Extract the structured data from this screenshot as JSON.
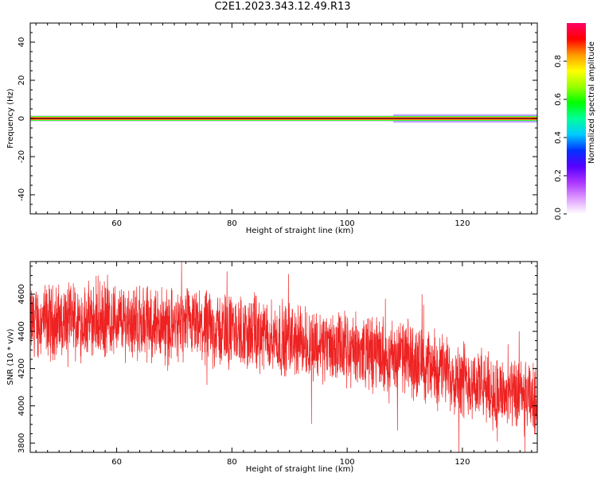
{
  "title": "C2E1.2023.343.12.49.R13",
  "chart_data": [
    {
      "type": "heatmap",
      "xlabel": "Height of straight line (km)",
      "ylabel": "Frequency (Hz)",
      "xlim": [
        45,
        133
      ],
      "ylim": [
        -50,
        50
      ],
      "xticks": [
        60,
        80,
        100,
        120
      ],
      "yticks": [
        -40,
        -20,
        0,
        20,
        40
      ],
      "band": {
        "center": 0,
        "colors": [
          "#cc66ff",
          "#6a5cff",
          "#33ff33",
          "#ffd11a",
          "#ff1a1a",
          "#1a1a1a"
        ]
      },
      "colorbar": {
        "label": "Normalized spectral amplitude",
        "range": [
          0,
          1
        ],
        "ticks": [
          "0.0",
          "0.2",
          "0.4",
          "0.6",
          "0.8"
        ],
        "tick_values": [
          0,
          0.2,
          0.4,
          0.6,
          0.8
        ],
        "colormap": [
          "#ffffff",
          "#dd99ff",
          "#aa33ff",
          "#5500ff",
          "#0033ff",
          "#00ccff",
          "#00ff99",
          "#00ff00",
          "#99ff00",
          "#ffff00",
          "#ff9900",
          "#ff0000",
          "#ff0066"
        ]
      }
    },
    {
      "type": "line",
      "xlabel": "Height of straight line (km)",
      "ylabel": "SNR (10 * v/v)",
      "xlim": [
        45,
        133
      ],
      "ylim": [
        3750,
        4775
      ],
      "xticks": [
        60,
        80,
        100,
        120
      ],
      "yticks": [
        3800,
        4000,
        4200,
        4400,
        4600
      ],
      "color": "#ee2222",
      "trend": {
        "x": [
          45,
          60,
          80,
          95,
          100,
          110,
          120,
          125,
          133
        ],
        "y": [
          4450,
          4460,
          4400,
          4330,
          4300,
          4260,
          4150,
          4080,
          4020
        ]
      },
      "noise_amplitude": 230
    }
  ]
}
